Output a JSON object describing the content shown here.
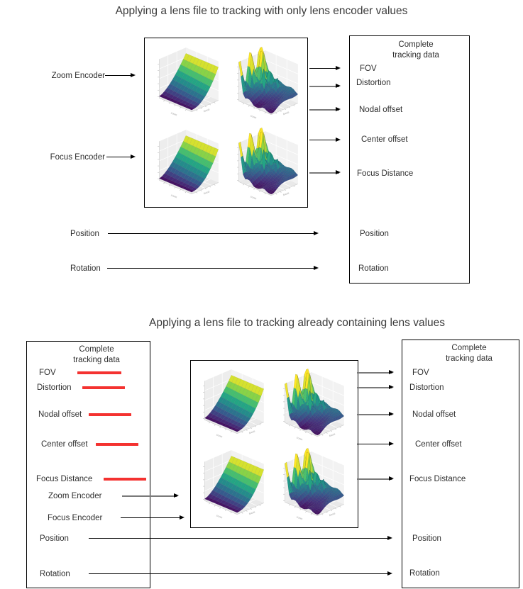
{
  "top_diagram": {
    "title": "Applying a lens file to tracking with only lens encoder values",
    "encoder_inputs": [
      "Zoom Encoder",
      "Focus Encoder"
    ],
    "tracking_inputs": [
      "Position",
      "Rotation"
    ],
    "output_box": {
      "title": "Complete tracking data",
      "lens_outputs": [
        "FOV",
        "Distortion",
        "Nodal offset",
        "Center offset",
        "Focus Distance"
      ],
      "tracking_outputs": [
        "Position",
        "Rotation"
      ]
    }
  },
  "bottom_diagram": {
    "title": "Applying a lens file to tracking already containing lens values",
    "input_box": {
      "title": "Complete tracking data",
      "overwritten_values": [
        "FOV",
        "Distortion",
        "Nodal offset",
        "Center offset",
        "Focus Distance"
      ],
      "encoder_values": [
        "Zoom Encoder",
        "Focus Encoder"
      ],
      "tracking_values": [
        "Position",
        "Rotation"
      ]
    },
    "output_box": {
      "title": "Complete tracking data",
      "lens_outputs": [
        "FOV",
        "Distortion",
        "Nodal offset",
        "Center offset",
        "Focus Distance"
      ],
      "tracking_outputs": [
        "Position",
        "Rotation"
      ]
    }
  },
  "lens_file_plots": {
    "types": [
      "smooth-surface",
      "jagged-surface",
      "smooth-surface",
      "jagged-surface"
    ],
    "colormap_viridis": [
      "#440154",
      "#46327e",
      "#365c8d",
      "#277f8e",
      "#1fa187",
      "#4ac16d",
      "#a0da39",
      "#fde725"
    ],
    "pane_color": "#ededed",
    "axis_labels": [
      "zoom",
      "focus"
    ]
  },
  "colors": {
    "strikethrough_red": "#f43230",
    "arrow_black": "#000000",
    "arrow_gray": "#7a7a7a",
    "box_border": "#000000",
    "text": "#2e2e2e"
  }
}
